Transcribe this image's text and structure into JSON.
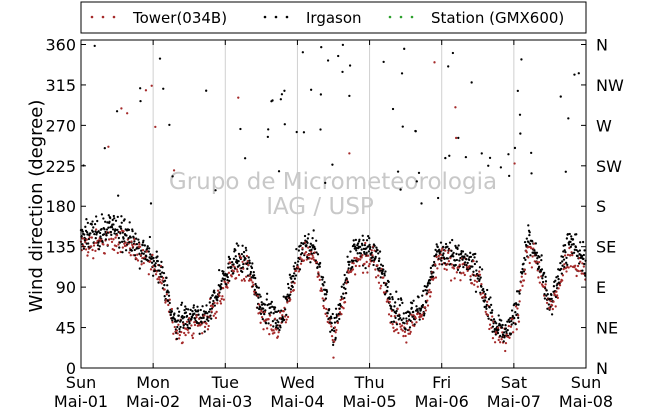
{
  "chart_data": {
    "type": "scatter",
    "title": "",
    "xlabel": "",
    "ylabel": "Wind direction (degree)",
    "xlim": [
      0,
      7
    ],
    "ylim": [
      0,
      365
    ],
    "grid": true,
    "legend_position": "top",
    "watermark": [
      "Grupo de Micrometeorologia",
      "IAG / USP"
    ],
    "x_ticks": [
      {
        "day": "Sun",
        "date": "Mai-01"
      },
      {
        "day": "Mon",
        "date": "Mai-02"
      },
      {
        "day": "Tue",
        "date": "Mai-03"
      },
      {
        "day": "Wed",
        "date": "Mai-04"
      },
      {
        "day": "Thu",
        "date": "Mai-05"
      },
      {
        "day": "Fri",
        "date": "Mai-06"
      },
      {
        "day": "Sat",
        "date": "Mai-07"
      },
      {
        "day": "Sun",
        "date": "Mai-08"
      }
    ],
    "y_ticks": [
      "0",
      "45",
      "90",
      "135",
      "180",
      "225",
      "270",
      "315",
      "360"
    ],
    "y2_ticks": [
      "N",
      "NE",
      "E",
      "SE",
      "S",
      "SW",
      "W",
      "NW",
      "N"
    ],
    "series": [
      {
        "name": "Tower(034B)",
        "color": "#a52a2a"
      },
      {
        "name": "Irgason",
        "color": "#000000"
      },
      {
        "name": "Station (GMX600)",
        "color": "#2ca02c"
      }
    ],
    "trend": {
      "x": [
        0,
        0.25,
        0.5,
        0.75,
        1.0,
        1.12,
        1.3,
        1.5,
        1.75,
        1.95,
        2.1,
        2.3,
        2.5,
        2.75,
        2.95,
        3.1,
        3.25,
        3.5,
        3.75,
        4.0,
        4.15,
        4.3,
        4.5,
        4.75,
        4.95,
        5.2,
        5.5,
        5.72,
        5.9,
        6.05,
        6.2,
        6.35,
        6.5,
        6.75,
        7.0
      ],
      "tower_y": [
        135,
        140,
        145,
        130,
        115,
        100,
        40,
        45,
        50,
        85,
        110,
        110,
        60,
        40,
        95,
        130,
        120,
        30,
        115,
        125,
        105,
        60,
        45,
        60,
        120,
        115,
        100,
        40,
        30,
        60,
        135,
        110,
        60,
        125,
        105
      ],
      "irgason_y": [
        145,
        150,
        155,
        140,
        120,
        105,
        50,
        55,
        55,
        95,
        120,
        120,
        70,
        50,
        105,
        140,
        130,
        40,
        125,
        135,
        115,
        70,
        55,
        70,
        130,
        125,
        110,
        50,
        40,
        70,
        145,
        120,
        70,
        140,
        115
      ]
    }
  }
}
